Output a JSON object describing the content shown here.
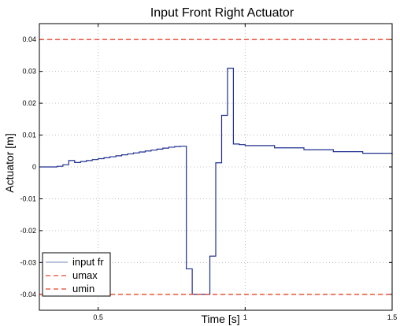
{
  "chart_data": {
    "type": "line",
    "title": "Input Front Right Actuator",
    "xlabel": "Time [s]",
    "ylabel": "Actuator [m]",
    "xlim": [
      0.3,
      1.5
    ],
    "ylim": [
      -0.045,
      0.045
    ],
    "xticks": [
      0.5,
      1,
      1.5
    ],
    "xtick_labels": [
      "0.5",
      "1",
      "1.5"
    ],
    "yticks": [
      -0.04,
      -0.03,
      -0.02,
      -0.01,
      0,
      0.01,
      0.02,
      0.03,
      0.04
    ],
    "ytick_labels": [
      "-0.04",
      "-0.03",
      "-0.02",
      "-0.01",
      "0",
      "0.01",
      "0.02",
      "0.03",
      "0.04"
    ],
    "grid": true,
    "legend_position": "bottom-left",
    "series": [
      {
        "name": "input fr",
        "color": "#1f2f8f",
        "style": "step",
        "x": [
          0.3,
          0.36,
          0.38,
          0.4,
          0.42,
          0.44,
          0.46,
          0.48,
          0.5,
          0.52,
          0.54,
          0.56,
          0.58,
          0.6,
          0.62,
          0.64,
          0.66,
          0.68,
          0.7,
          0.72,
          0.74,
          0.76,
          0.78,
          0.8,
          0.82,
          0.84,
          0.86,
          0.88,
          0.9,
          0.92,
          0.94,
          0.96,
          0.98,
          1.0,
          1.1,
          1.2,
          1.3,
          1.4,
          1.5
        ],
        "y": [
          0.0,
          0.0002,
          0.0007,
          0.002,
          0.0014,
          0.0017,
          0.002,
          0.0023,
          0.0026,
          0.0029,
          0.0032,
          0.0035,
          0.0038,
          0.0041,
          0.0044,
          0.0047,
          0.005,
          0.0053,
          0.0056,
          0.0059,
          0.0062,
          0.0064,
          0.0065,
          -0.032,
          -0.04,
          -0.04,
          -0.04,
          -0.028,
          0.0013,
          0.0162,
          0.031,
          0.0072,
          0.007,
          0.0067,
          0.006,
          0.0054,
          0.0048,
          0.0043,
          0.0038
        ]
      },
      {
        "name": "umax",
        "color": "#e8452a",
        "style": "dashed",
        "x": [
          0.3,
          1.5
        ],
        "y": [
          0.04,
          0.04
        ]
      },
      {
        "name": "umin",
        "color": "#e8452a",
        "style": "dashed",
        "x": [
          0.3,
          1.5
        ],
        "y": [
          -0.04,
          -0.04
        ]
      }
    ],
    "legend": [
      {
        "label": "input fr",
        "color": "#8f9fc8",
        "style": "solid"
      },
      {
        "label": "umax",
        "color": "#e8452a",
        "style": "dashed"
      },
      {
        "label": "umin",
        "color": "#e8452a",
        "style": "dashed"
      }
    ]
  }
}
